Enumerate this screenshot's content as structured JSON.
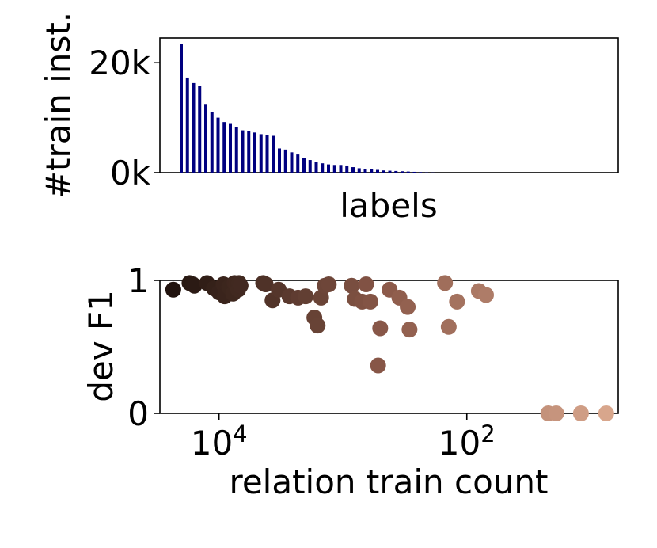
{
  "chart_data": [
    {
      "type": "bar",
      "xlabel": "labels",
      "ylabel": "#train inst.",
      "ylim": [
        0,
        24500
      ],
      "yticks": [
        0,
        20000
      ],
      "ytick_labels": [
        "0k",
        "20k"
      ],
      "bar_color": "#00007f",
      "values": [
        23400,
        17300,
        16300,
        15800,
        12500,
        11000,
        10000,
        9200,
        9000,
        8300,
        7700,
        7500,
        7300,
        7000,
        6900,
        6700,
        4400,
        4200,
        3700,
        3300,
        2700,
        2300,
        2000,
        1700,
        1500,
        1400,
        1400,
        1300,
        1000,
        800,
        700,
        600,
        500,
        400,
        350,
        300,
        250,
        200,
        150,
        100,
        50,
        30
      ]
    },
    {
      "type": "scatter",
      "xlabel": "relation train count",
      "ylabel": "dev F1",
      "x_scale": "log",
      "x_reversed": true,
      "xlim": [
        30000,
        6
      ],
      "ylim": [
        0,
        1
      ],
      "xticks": [
        10000,
        100
      ],
      "xtick_labels": [
        {
          "base": "10",
          "exp": "4"
        },
        {
          "base": "10",
          "exp": "2"
        }
      ],
      "yticks": [
        0,
        1
      ],
      "ytick_labels": [
        "0",
        "1"
      ],
      "color_gradient": [
        "#1a0f0a",
        "#8c5a4a",
        "#dcaa90"
      ],
      "points": [
        {
          "x": 23400,
          "y": 0.93
        },
        {
          "x": 17300,
          "y": 0.98
        },
        {
          "x": 16300,
          "y": 0.97
        },
        {
          "x": 15800,
          "y": 0.96
        },
        {
          "x": 12500,
          "y": 0.98
        },
        {
          "x": 11000,
          "y": 0.94
        },
        {
          "x": 10000,
          "y": 0.91
        },
        {
          "x": 9200,
          "y": 0.97
        },
        {
          "x": 9000,
          "y": 0.88
        },
        {
          "x": 8300,
          "y": 0.95
        },
        {
          "x": 7700,
          "y": 0.9
        },
        {
          "x": 7500,
          "y": 0.98
        },
        {
          "x": 7300,
          "y": 0.97
        },
        {
          "x": 7000,
          "y": 0.93
        },
        {
          "x": 6900,
          "y": 0.98
        },
        {
          "x": 6700,
          "y": 0.96
        },
        {
          "x": 4400,
          "y": 0.98
        },
        {
          "x": 4200,
          "y": 0.97
        },
        {
          "x": 3700,
          "y": 0.85
        },
        {
          "x": 3300,
          "y": 0.93
        },
        {
          "x": 2700,
          "y": 0.88
        },
        {
          "x": 2300,
          "y": 0.87
        },
        {
          "x": 2000,
          "y": 0.88
        },
        {
          "x": 1700,
          "y": 0.72
        },
        {
          "x": 1600,
          "y": 0.66
        },
        {
          "x": 1500,
          "y": 0.87
        },
        {
          "x": 1400,
          "y": 0.96
        },
        {
          "x": 1300,
          "y": 0.97
        },
        {
          "x": 850,
          "y": 0.96
        },
        {
          "x": 800,
          "y": 0.86
        },
        {
          "x": 700,
          "y": 0.84
        },
        {
          "x": 650,
          "y": 0.97
        },
        {
          "x": 600,
          "y": 0.84
        },
        {
          "x": 520,
          "y": 0.36
        },
        {
          "x": 500,
          "y": 0.64
        },
        {
          "x": 420,
          "y": 0.93
        },
        {
          "x": 350,
          "y": 0.87
        },
        {
          "x": 300,
          "y": 0.8
        },
        {
          "x": 290,
          "y": 0.63
        },
        {
          "x": 150,
          "y": 0.98
        },
        {
          "x": 140,
          "y": 0.65
        },
        {
          "x": 120,
          "y": 0.84
        },
        {
          "x": 80,
          "y": 0.92
        },
        {
          "x": 70,
          "y": 0.89
        },
        {
          "x": 22,
          "y": 0.0
        },
        {
          "x": 19,
          "y": 0.0
        },
        {
          "x": 12,
          "y": 0.0
        },
        {
          "x": 7.5,
          "y": 0.0
        }
      ]
    }
  ]
}
